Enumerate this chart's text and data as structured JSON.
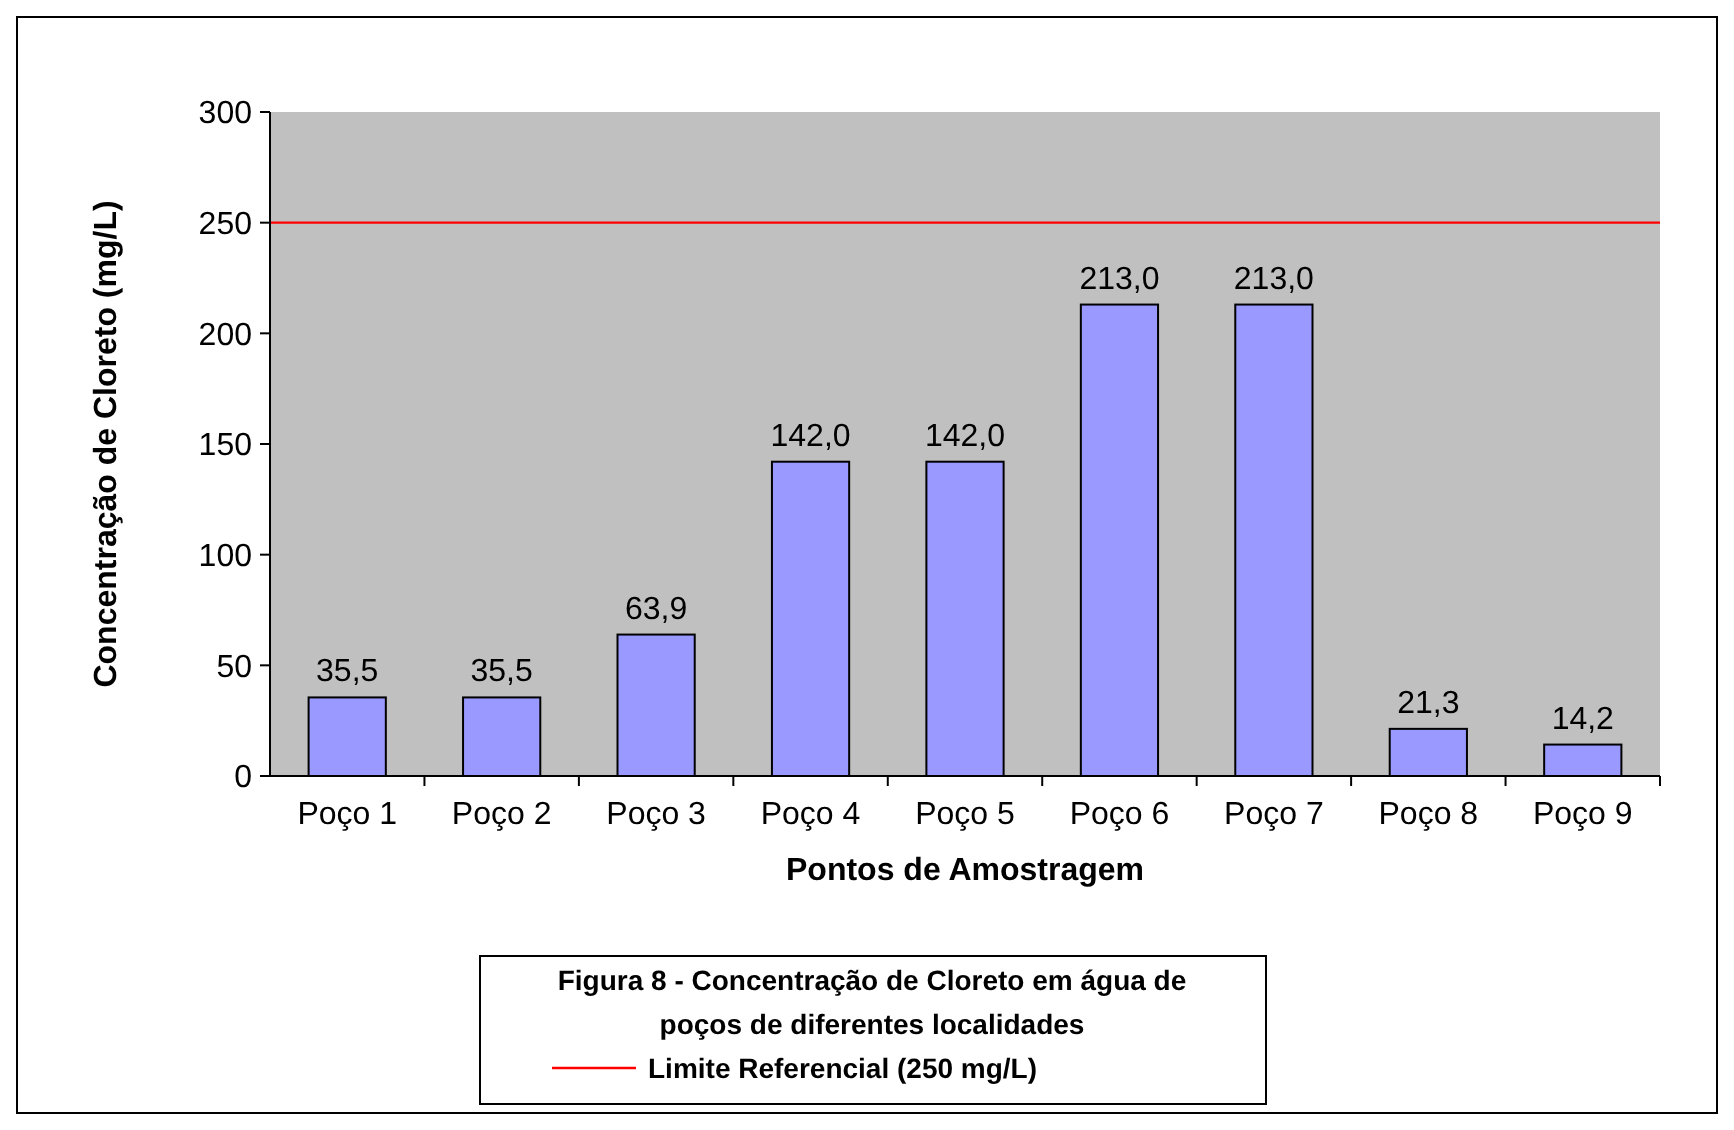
{
  "chart_data": {
    "type": "bar",
    "xlabel": "Pontos de Amostragem",
    "ylabel": "Concentração de Cloreto (mg/L)",
    "categories": [
      "Poço 1",
      "Poço 2",
      "Poço 3",
      "Poço 4",
      "Poço 5",
      "Poço 6",
      "Poço 7",
      "Poço 8",
      "Poço 9"
    ],
    "values": [
      35.5,
      35.5,
      63.9,
      142.0,
      142.0,
      213.0,
      213.0,
      21.3,
      14.2
    ],
    "value_labels": [
      "35,5",
      "35,5",
      "63,9",
      "142,0",
      "142,0",
      "213,0",
      "213,0",
      "21,3",
      "14,2"
    ],
    "color": "#9999ff",
    "ylim": [
      0,
      300
    ],
    "yticks": [
      0,
      50,
      100,
      150,
      200,
      250,
      300
    ],
    "ref_lines": [
      {
        "axis": "y",
        "value": 250,
        "label": "Limite Referencial (250 mg/L)",
        "color": "#ff0000"
      }
    ],
    "annotations": [
      "Figura 8 - Concentração de Cloreto em água de poços de diferentes localidades"
    ],
    "legend": "bottom"
  }
}
